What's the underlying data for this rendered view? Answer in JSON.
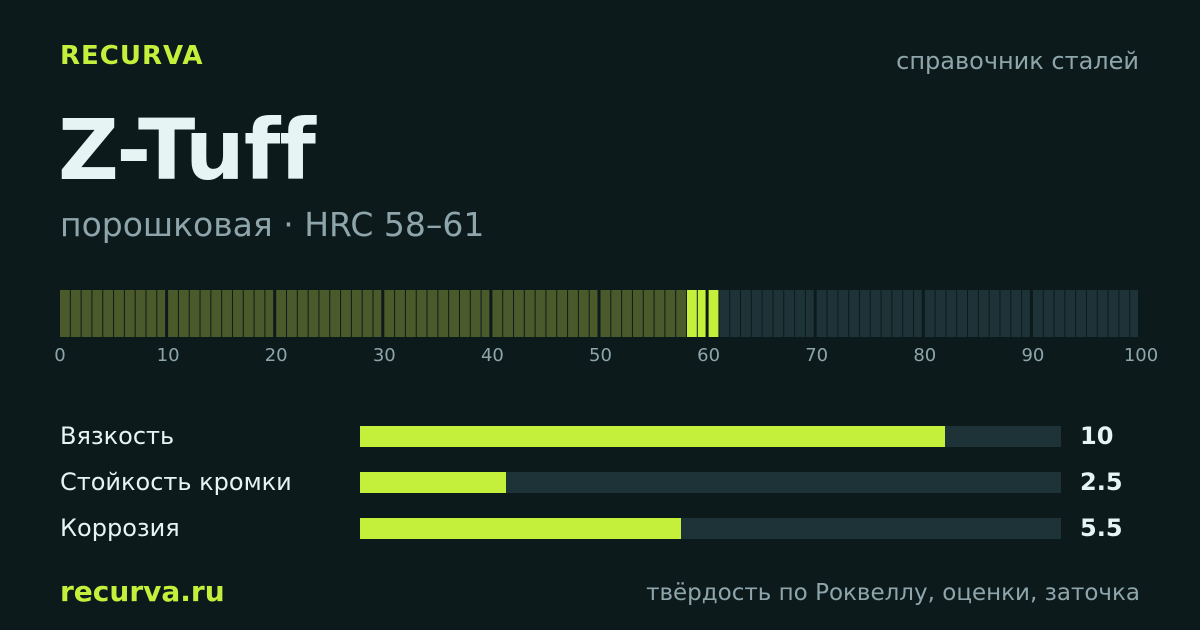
{
  "header": {
    "brand": "RECURVA",
    "section": "справочник сталей"
  },
  "steel": {
    "name": "Z-Tuff",
    "subtitle": "порошковая · HRC 58–61"
  },
  "hardness_scale": {
    "min": 0,
    "max": 100,
    "tick_labels": [
      "0",
      "10",
      "20",
      "30",
      "40",
      "50",
      "60",
      "70",
      "80",
      "90",
      "100"
    ],
    "range_low": 58,
    "range_high": 61,
    "colors": {
      "below": "#4a5a2a",
      "range": "#c4f03c",
      "above": "#1d3338"
    }
  },
  "ratings": [
    {
      "label": "Вязкость",
      "value": "10",
      "fraction": 0.834
    },
    {
      "label": "Стойкость кромки",
      "value": "2.5",
      "fraction": 0.208
    },
    {
      "label": "Коррозия",
      "value": "5.5",
      "fraction": 0.458
    }
  ],
  "footer": {
    "site": "recurva.ru",
    "tagline": "твёрдость по Роквеллу, оценки, заточка"
  },
  "colors": {
    "accent": "#c4f03c",
    "background": "#0d1a1c",
    "track": "#1d3338",
    "muted_text": "#8ea6ab",
    "text": "#e6f4f4"
  }
}
